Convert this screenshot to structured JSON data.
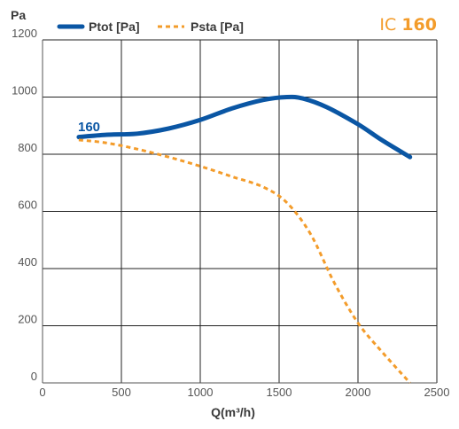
{
  "chart_data": {
    "type": "line",
    "title_prefix": "IC ",
    "title_model": "160",
    "xlabel": "Q(m³/h)",
    "ylabel": "Pa",
    "xlim": [
      0,
      2500
    ],
    "ylim": [
      0,
      1200
    ],
    "xticks": [
      0,
      500,
      1000,
      1500,
      2000,
      2500
    ],
    "yticks": [
      0,
      200,
      400,
      600,
      800,
      1000,
      1200
    ],
    "grid": true,
    "legend_position": "top",
    "curve_label": "160",
    "series": [
      {
        "name": "Ptot [Pa]",
        "color": "#0a56a4",
        "style": "solid",
        "x": [
          230,
          400,
          600,
          800,
          1000,
          1200,
          1400,
          1550,
          1650,
          1800,
          2000,
          2150,
          2330
        ],
        "y": [
          860,
          868,
          872,
          890,
          920,
          960,
          990,
          1000,
          995,
          965,
          905,
          850,
          790
        ]
      },
      {
        "name": "Psta [Pa]",
        "color": "#f39c2b",
        "style": "dashed",
        "x": [
          230,
          400,
          600,
          800,
          1000,
          1200,
          1400,
          1550,
          1700,
          1850,
          2000,
          2150,
          2330
        ],
        "y": [
          850,
          840,
          818,
          790,
          758,
          722,
          685,
          630,
          520,
          350,
          210,
          110,
          0
        ]
      }
    ],
    "colors": {
      "title_prefix": "#f39c2b",
      "title_model": "#f39c2b",
      "curve_label": "#0a56a4",
      "grid": "#222222",
      "axis": "#555555"
    }
  }
}
